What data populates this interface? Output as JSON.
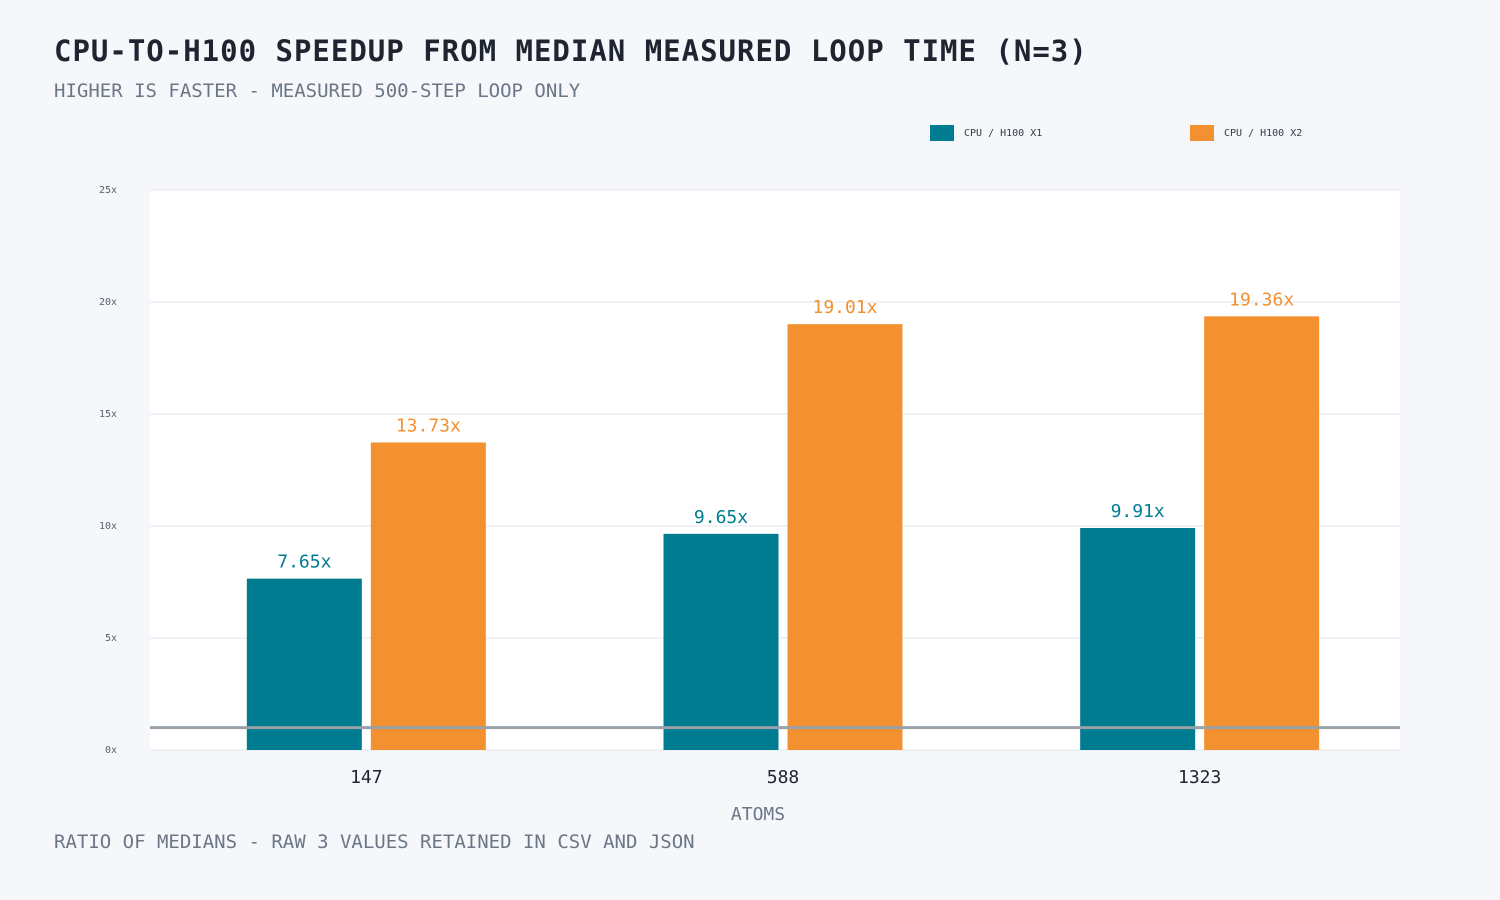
{
  "chart_data": {
    "type": "bar",
    "title": "CPU-to-H100 speedup from median measured loop time (n=3)",
    "subtitle": "Higher is faster - measured 500-step loop only",
    "footnote": "Ratio of medians - raw 3 values retained in CSV and JSON",
    "xlabel": "Atoms",
    "ylabel": "",
    "categories": [
      "147",
      "588",
      "1323"
    ],
    "series": [
      {
        "name": "CPU / H100 x1",
        "values": [
          7.65,
          9.65,
          9.91
        ],
        "labels": [
          "7.65x",
          "9.65x",
          "9.91x"
        ],
        "color": "#007c91"
      },
      {
        "name": "CPU / H100 x2",
        "values": [
          13.73,
          19.01,
          19.36
        ],
        "labels": [
          "13.73x",
          "19.01x",
          "19.36x"
        ],
        "color": "#f39130"
      }
    ],
    "ylim": [
      0,
      25
    ],
    "yticks": [
      0,
      5,
      10,
      15,
      20,
      25
    ],
    "ytick_labels": [
      "0x",
      "5x",
      "10x",
      "15x",
      "20x",
      "25x"
    ],
    "reference_line": 1,
    "grid": true,
    "legend": "top-right"
  }
}
